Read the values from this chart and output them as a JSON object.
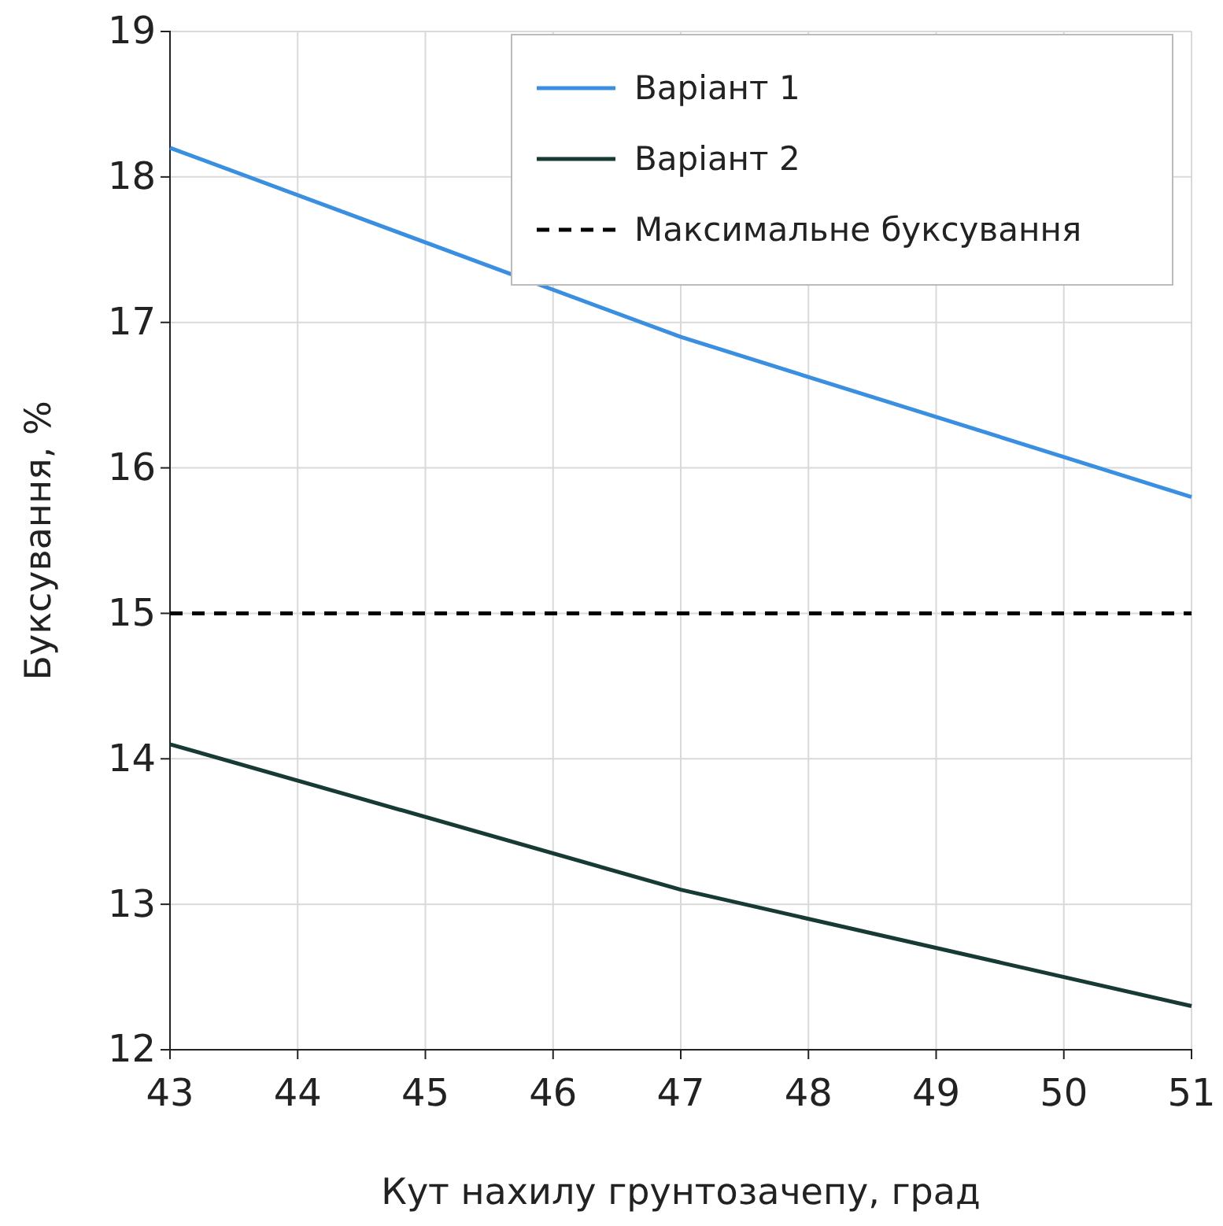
{
  "chart_data": {
    "type": "line",
    "xlabel": "Кут нахилу грунтозачепу, град",
    "ylabel": "Буксування, %",
    "xlim": [
      43,
      51
    ],
    "xticks": [
      43,
      44,
      45,
      46,
      47,
      48,
      49,
      50,
      51
    ],
    "ylim": [
      12,
      19
    ],
    "yticks": [
      12,
      13,
      14,
      15,
      16,
      17,
      18,
      19
    ],
    "grid": true,
    "legend": "top right",
    "marker": "none",
    "series": [
      {
        "name": "Варіант 1",
        "color": "#3a8fe0",
        "x": [
          43,
          47,
          51
        ],
        "values": [
          18.2,
          16.9,
          15.8
        ]
      },
      {
        "name": "Варіант 2",
        "color": "#173a35",
        "x": [
          43,
          47,
          51
        ],
        "values": [
          14.1,
          13.1,
          12.3
        ]
      },
      {
        "name": "Максимальне буксування",
        "color": "#000000",
        "x": [
          43,
          51
        ],
        "values": [
          15,
          15
        ],
        "line_style": "dashed"
      }
    ]
  }
}
